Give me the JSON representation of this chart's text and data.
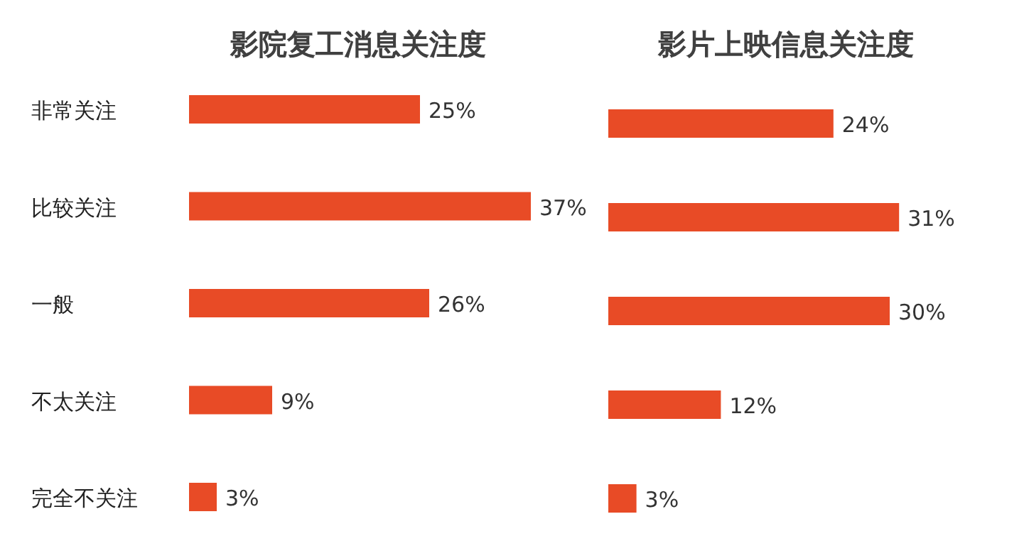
{
  "chart_data": [
    {
      "type": "bar",
      "orientation": "horizontal",
      "title": "影院复工消息关注度",
      "categories": [
        "非常关注",
        "比较关注",
        "一般",
        "不太关注",
        "完全不关注"
      ],
      "values": [
        25,
        37,
        26,
        9,
        3
      ],
      "value_labels": [
        "25%",
        "37%",
        "26%",
        "9%",
        "3%"
      ],
      "color": "#e84b26"
    },
    {
      "type": "bar",
      "orientation": "horizontal",
      "title": "影片上映信息关注度",
      "categories": [
        null,
        null,
        null,
        null,
        null
      ],
      "values": [
        24,
        31,
        30,
        12,
        3
      ],
      "value_labels": [
        "24%",
        "31%",
        "30%",
        "12%",
        "3%"
      ],
      "color": "#e84b26"
    }
  ]
}
